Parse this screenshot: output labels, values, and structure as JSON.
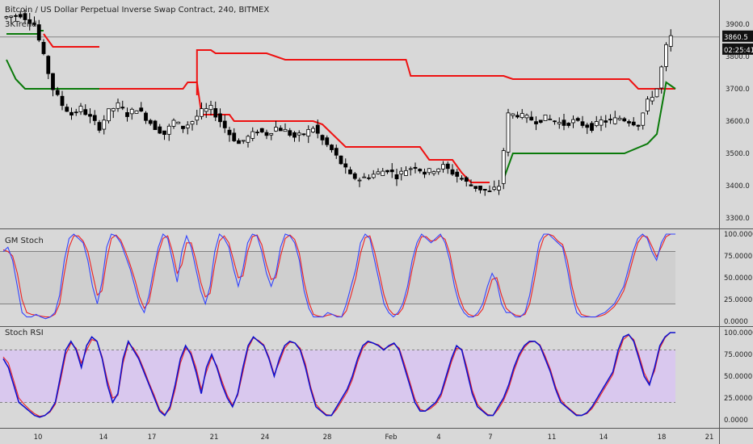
{
  "title": "Bitcoin / US Dollar Perpetual Inverse Swap Contract, 240, BITMEX",
  "colors": {
    "background": "#d8d8d8",
    "candle": "#000000",
    "trend_up": "#0a7a0a",
    "trend_down": "#ee1111",
    "stoch_k": "#3344ff",
    "stoch_d": "#ee2222",
    "stoch_band": "#cfcfcf",
    "rsi_band": "#d9c8ee",
    "rsi_k": "#1111cc"
  },
  "chart_data": [
    {
      "type": "candlestick",
      "title": "Bitcoin / US Dollar Perpetual Inverse Swap Contract, 240, BITMEX",
      "indicator": "3KTrend",
      "x_ticks": [
        "10",
        "14",
        "17",
        "21",
        "24",
        "28",
        "Feb",
        "4",
        "7",
        "11",
        "14",
        "18",
        "21"
      ],
      "y_ticks": [
        "3900.0",
        "3800.0",
        "3700.0",
        "3600.0",
        "3500.0",
        "3400.0",
        "3300.0"
      ],
      "ylim": [
        3250,
        3960
      ],
      "last_price": "3860.5",
      "countdown": "02:25:41",
      "price_path": [
        [
          0,
          3920
        ],
        [
          4,
          3930
        ],
        [
          7,
          3900
        ],
        [
          9,
          3800
        ],
        [
          11,
          3700
        ],
        [
          13,
          3650
        ],
        [
          15,
          3620
        ],
        [
          17,
          3640
        ],
        [
          19,
          3610
        ],
        [
          21,
          3580
        ],
        [
          23,
          3630
        ],
        [
          25,
          3650
        ],
        [
          27,
          3620
        ],
        [
          29,
          3640
        ],
        [
          31,
          3610
        ],
        [
          33,
          3580
        ],
        [
          35,
          3560
        ],
        [
          37,
          3600
        ],
        [
          39,
          3580
        ],
        [
          41,
          3600
        ],
        [
          43,
          3630
        ],
        [
          45,
          3640
        ],
        [
          47,
          3600
        ],
        [
          49,
          3560
        ],
        [
          51,
          3530
        ],
        [
          53,
          3550
        ],
        [
          55,
          3570
        ],
        [
          57,
          3560
        ],
        [
          59,
          3580
        ],
        [
          61,
          3570
        ],
        [
          63,
          3550
        ],
        [
          65,
          3560
        ],
        [
          67,
          3580
        ],
        [
          69,
          3540
        ],
        [
          71,
          3510
        ],
        [
          73,
          3470
        ],
        [
          75,
          3430
        ],
        [
          77,
          3420
        ],
        [
          79,
          3430
        ],
        [
          81,
          3440
        ],
        [
          83,
          3450
        ],
        [
          85,
          3430
        ],
        [
          87,
          3450
        ],
        [
          89,
          3460
        ],
        [
          91,
          3440
        ],
        [
          93,
          3450
        ],
        [
          95,
          3460
        ],
        [
          97,
          3440
        ],
        [
          99,
          3420
        ],
        [
          101,
          3400
        ],
        [
          103,
          3390
        ],
        [
          105,
          3380
        ],
        [
          107,
          3400
        ],
        [
          109,
          3620
        ],
        [
          111,
          3620
        ],
        [
          113,
          3610
        ],
        [
          115,
          3600
        ],
        [
          117,
          3610
        ],
        [
          119,
          3600
        ],
        [
          121,
          3590
        ],
        [
          123,
          3600
        ],
        [
          125,
          3590
        ],
        [
          127,
          3580
        ],
        [
          129,
          3600
        ],
        [
          131,
          3600
        ],
        [
          133,
          3610
        ],
        [
          135,
          3600
        ],
        [
          137,
          3590
        ],
        [
          139,
          3660
        ],
        [
          141,
          3700
        ],
        [
          143,
          3830
        ],
        [
          144,
          3860
        ]
      ],
      "trend_segments": [
        {
          "color": "trend_up",
          "points": [
            [
              0,
              3870
            ],
            [
              7,
              3870
            ],
            [
              7,
              3880
            ],
            [
              8,
              3880
            ]
          ]
        },
        {
          "color": "trend_up",
          "points": [
            [
              0,
              3790
            ],
            [
              2,
              3730
            ],
            [
              4,
              3700
            ],
            [
              10,
              3700
            ],
            [
              20,
              3700
            ]
          ]
        },
        {
          "color": "trend_down",
          "points": [
            [
              8,
              3870
            ],
            [
              10,
              3830
            ],
            [
              20,
              3830
            ],
            [
              20,
              3830
            ]
          ]
        },
        {
          "color": "trend_down",
          "points": [
            [
              20,
              3700
            ],
            [
              38,
              3700
            ],
            [
              39,
              3720
            ],
            [
              41,
              3720
            ],
            [
              42,
              3620
            ],
            [
              48,
              3620
            ],
            [
              49,
              3600
            ],
            [
              55,
              3600
            ],
            [
              56,
              3600
            ],
            [
              66,
              3600
            ],
            [
              68,
              3590
            ],
            [
              73,
              3520
            ],
            [
              89,
              3520
            ],
            [
              91,
              3480
            ],
            [
              96,
              3480
            ],
            [
              98,
              3440
            ],
            [
              100,
              3410
            ],
            [
              104,
              3410
            ]
          ]
        },
        {
          "color": "trend_down",
          "points": [
            [
              41,
              3680
            ],
            [
              41,
              3820
            ],
            [
              44,
              3820
            ],
            [
              45,
              3810
            ],
            [
              55,
              3810
            ],
            [
              56,
              3810
            ],
            [
              60,
              3790
            ],
            [
              86,
              3790
            ],
            [
              87,
              3740
            ],
            [
              107,
              3740
            ],
            [
              109,
              3730
            ],
            [
              134,
              3730
            ],
            [
              136,
              3700
            ],
            [
              144,
              3700
            ]
          ]
        },
        {
          "color": "trend_up",
          "points": [
            [
              107,
              3420
            ],
            [
              109,
              3500
            ],
            [
              133,
              3500
            ],
            [
              138,
              3530
            ],
            [
              140,
              3560
            ],
            [
              142,
              3720
            ],
            [
              144,
              3700
            ]
          ]
        }
      ]
    },
    {
      "type": "line",
      "title": "GM Stoch",
      "ylim": [
        0,
        100
      ],
      "y_ticks": [
        "100.0000",
        "75.0000",
        "50.0000",
        "25.0000",
        "0.0000"
      ],
      "band": [
        20,
        80
      ],
      "series": [
        {
          "name": "K",
          "values": [
            80,
            85,
            70,
            40,
            10,
            5,
            5,
            8,
            5,
            3,
            5,
            10,
            30,
            70,
            95,
            100,
            95,
            90,
            70,
            40,
            20,
            45,
            85,
            100,
            98,
            90,
            75,
            60,
            40,
            20,
            10,
            30,
            60,
            85,
            100,
            95,
            70,
            45,
            80,
            98,
            85,
            60,
            35,
            20,
            40,
            80,
            100,
            95,
            85,
            60,
            40,
            60,
            90,
            100,
            98,
            80,
            55,
            40,
            55,
            85,
            100,
            98,
            90,
            70,
            35,
            15,
            5,
            5,
            5,
            10,
            8,
            5,
            5,
            20,
            40,
            60,
            90,
            100,
            95,
            70,
            45,
            20,
            10,
            5,
            10,
            20,
            40,
            70,
            90,
            100,
            95,
            90,
            95,
            100,
            90,
            70,
            40,
            20,
            10,
            5,
            5,
            10,
            20,
            40,
            55,
            45,
            20,
            10,
            10,
            5,
            5,
            10,
            30,
            60,
            90,
            100,
            100,
            95,
            90,
            85,
            60,
            30,
            10,
            5,
            5,
            5,
            5,
            8,
            10,
            15,
            20,
            30,
            40,
            60,
            80,
            95,
            100,
            95,
            80,
            70,
            90,
            100,
            100,
            100
          ]
        },
        {
          "name": "D",
          "values": [
            82,
            80,
            75,
            55,
            25,
            10,
            8,
            7,
            6,
            5,
            5,
            8,
            20,
            55,
            85,
            98,
            98,
            92,
            80,
            55,
            30,
            35,
            70,
            95,
            99,
            93,
            80,
            65,
            48,
            28,
            15,
            22,
            50,
            78,
            95,
            98,
            80,
            55,
            65,
            90,
            90,
            70,
            45,
            28,
            32,
            65,
            92,
            98,
            90,
            70,
            50,
            52,
            80,
            97,
            99,
            88,
            65,
            48,
            50,
            75,
            95,
            99,
            94,
            78,
            45,
            22,
            8,
            6,
            5,
            7,
            8,
            6,
            5,
            12,
            30,
            50,
            78,
            96,
            98,
            80,
            55,
            30,
            14,
            8,
            8,
            15,
            32,
            60,
            84,
            97,
            97,
            92,
            93,
            98,
            94,
            78,
            50,
            28,
            14,
            8,
            6,
            7,
            14,
            30,
            48,
            50,
            30,
            15,
            10,
            7,
            6,
            8,
            20,
            48,
            80,
            96,
            100,
            98,
            92,
            88,
            70,
            40,
            18,
            8,
            6,
            5,
            5,
            6,
            8,
            12,
            17,
            25,
            35,
            52,
            72,
            90,
            98,
            97,
            86,
            74,
            85,
            97,
            100,
            100
          ]
        }
      ]
    },
    {
      "type": "line",
      "title": "Stoch RSI",
      "ylim": [
        0,
        100
      ],
      "y_ticks": [
        "100.0000",
        "75.0000",
        "50.0000",
        "25.0000",
        "0.0000"
      ],
      "band": [
        20,
        80
      ],
      "series": [
        {
          "name": "K",
          "values": [
            70,
            60,
            40,
            20,
            15,
            10,
            5,
            3,
            5,
            10,
            20,
            50,
            80,
            90,
            80,
            60,
            85,
            95,
            90,
            70,
            40,
            20,
            30,
            70,
            90,
            80,
            70,
            55,
            40,
            25,
            10,
            5,
            15,
            40,
            70,
            85,
            75,
            55,
            30,
            60,
            75,
            60,
            40,
            25,
            15,
            30,
            60,
            85,
            95,
            90,
            85,
            70,
            50,
            70,
            85,
            90,
            88,
            80,
            60,
            35,
            15,
            10,
            5,
            5,
            15,
            25,
            35,
            50,
            70,
            85,
            90,
            88,
            85,
            80,
            85,
            88,
            80,
            60,
            40,
            20,
            10,
            10,
            15,
            20,
            30,
            50,
            70,
            85,
            80,
            55,
            30,
            15,
            10,
            5,
            5,
            15,
            25,
            40,
            60,
            75,
            85,
            90,
            90,
            85,
            70,
            55,
            35,
            20,
            15,
            10,
            5,
            5,
            8,
            15,
            25,
            35,
            45,
            55,
            80,
            95,
            98,
            90,
            70,
            50,
            40,
            60,
            85,
            95,
            100,
            100
          ]
        },
        {
          "name": "D",
          "values": [
            72,
            65,
            45,
            25,
            18,
            12,
            7,
            4,
            5,
            9,
            18,
            45,
            75,
            88,
            82,
            65,
            80,
            92,
            90,
            72,
            45,
            25,
            28,
            65,
            88,
            82,
            72,
            58,
            42,
            28,
            12,
            6,
            12,
            35,
            65,
            82,
            78,
            60,
            35,
            55,
            72,
            62,
            44,
            28,
            17,
            28,
            55,
            82,
            94,
            91,
            86,
            72,
            52,
            66,
            82,
            89,
            88,
            82,
            64,
            38,
            18,
            11,
            6,
            5,
            12,
            22,
            32,
            46,
            66,
            82,
            89,
            88,
            86,
            81,
            84,
            87,
            82,
            64,
            44,
            24,
            12,
            10,
            13,
            18,
            27,
            46,
            66,
            82,
            81,
            60,
            34,
            18,
            11,
            6,
            5,
            12,
            22,
            36,
            56,
            72,
            83,
            89,
            90,
            86,
            73,
            58,
            38,
            23,
            16,
            11,
            6,
            5,
            7,
            13,
            22,
            32,
            42,
            52,
            75,
            92,
            97,
            92,
            74,
            54,
            42,
            56,
            82,
            94,
            100,
            100
          ]
        }
      ]
    }
  ]
}
